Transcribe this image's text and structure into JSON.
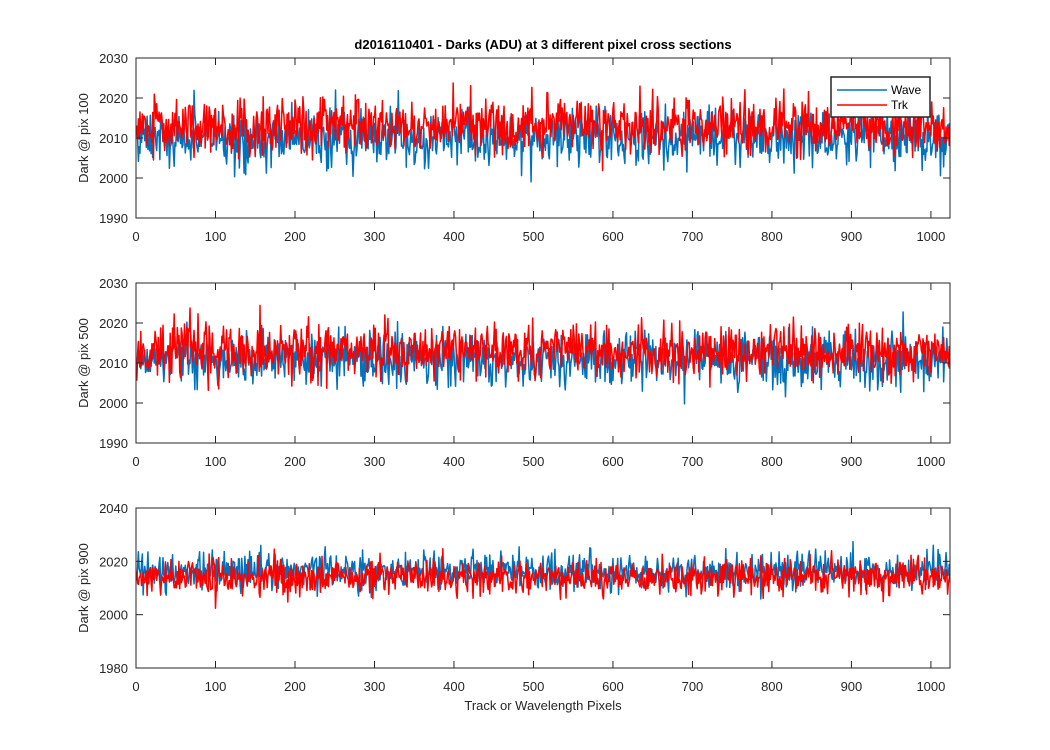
{
  "figure": {
    "title": "d2016110401 - Darks (ADU) at 3 different pixel cross sections",
    "xlabel": "Track or Wavelength Pixels"
  },
  "chart_data": [
    {
      "type": "line",
      "ylabel": "Dark @ pix 100",
      "xlim": [
        0,
        1024
      ],
      "ylim": [
        1990,
        2030
      ],
      "xticks": [
        0,
        100,
        200,
        300,
        400,
        500,
        600,
        700,
        800,
        900,
        1000
      ],
      "yticks": [
        1990,
        2000,
        2010,
        2020,
        2030
      ],
      "legend": {
        "location": "top-right",
        "entries": [
          "Wave",
          "Trk"
        ]
      },
      "series": [
        {
          "name": "Wave",
          "color": "#0072BD",
          "mean": 2010,
          "spread": 3.5,
          "min": 1997,
          "max": 2027
        },
        {
          "name": "Trk",
          "color": "#FF0000",
          "mean": 2013,
          "spread": 3.5,
          "min": 1999,
          "max": 2027
        }
      ]
    },
    {
      "type": "line",
      "ylabel": "Dark @ pix 500",
      "xlim": [
        0,
        1024
      ],
      "ylim": [
        1990,
        2030
      ],
      "xticks": [
        0,
        100,
        200,
        300,
        400,
        500,
        600,
        700,
        800,
        900,
        1000
      ],
      "yticks": [
        1990,
        2000,
        2010,
        2020,
        2030
      ],
      "series": [
        {
          "name": "Wave",
          "color": "#0072BD",
          "mean": 2011,
          "spread": 3.5,
          "min": 1995,
          "max": 2025
        },
        {
          "name": "Trk",
          "color": "#FF0000",
          "mean": 2013,
          "spread": 3.5,
          "min": 1998,
          "max": 2027
        }
      ]
    },
    {
      "type": "line",
      "ylabel": "Dark @ pix 900",
      "xlim": [
        0,
        1024
      ],
      "ylim": [
        1980,
        2040
      ],
      "xticks": [
        0,
        100,
        200,
        300,
        400,
        500,
        600,
        700,
        800,
        900,
        1000
      ],
      "yticks": [
        1980,
        2000,
        2020,
        2040
      ],
      "series": [
        {
          "name": "Wave",
          "color": "#0072BD",
          "mean": 2016,
          "spread": 3.5,
          "min": 2002,
          "max": 2028
        },
        {
          "name": "Trk",
          "color": "#FF0000",
          "mean": 2014,
          "spread": 3.5,
          "min": 1998,
          "max": 2031
        }
      ]
    }
  ]
}
